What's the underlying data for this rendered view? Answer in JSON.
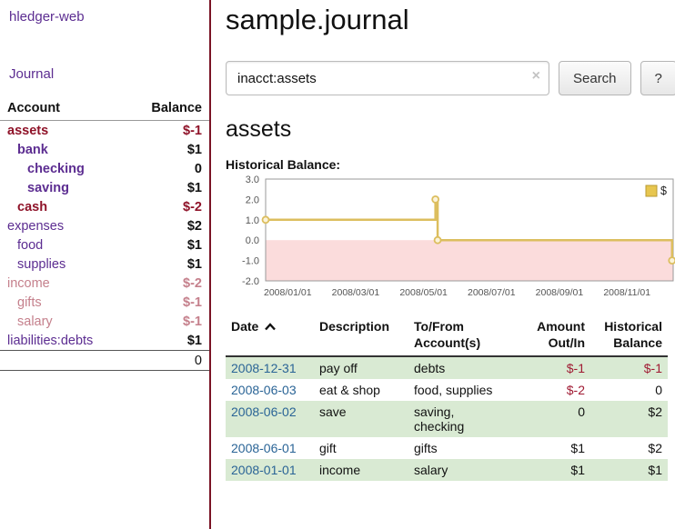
{
  "sidebar": {
    "brand": "hledger-web",
    "journal_link": "Journal",
    "accounts_header": {
      "account": "Account",
      "balance": "Balance"
    },
    "accounts": [
      {
        "name": "assets",
        "indent": 0,
        "balance": "$-1",
        "name_tone": "maroon",
        "bal_tone": "maroon",
        "bold": true
      },
      {
        "name": "bank",
        "indent": 1,
        "balance": "$1",
        "name_tone": "purple",
        "bal_tone": "black",
        "bold": true
      },
      {
        "name": "checking",
        "indent": 2,
        "balance": "0",
        "name_tone": "purple",
        "bal_tone": "black",
        "bold": true
      },
      {
        "name": "saving",
        "indent": 2,
        "balance": "$1",
        "name_tone": "purple",
        "bal_tone": "black",
        "bold": true
      },
      {
        "name": "cash",
        "indent": 1,
        "balance": "$-2",
        "name_tone": "maroon",
        "bal_tone": "maroon",
        "bold": true
      },
      {
        "name": "expenses",
        "indent": 0,
        "balance": "$2",
        "name_tone": "purple",
        "bal_tone": "black",
        "bold": false
      },
      {
        "name": "food",
        "indent": 1,
        "balance": "$1",
        "name_tone": "purple",
        "bal_tone": "black",
        "bold": false
      },
      {
        "name": "supplies",
        "indent": 1,
        "balance": "$1",
        "name_tone": "purple",
        "bal_tone": "black",
        "bold": false
      },
      {
        "name": "income",
        "indent": 0,
        "balance": "$-2",
        "name_tone": "pink",
        "bal_tone": "pink",
        "bold": false
      },
      {
        "name": "gifts",
        "indent": 1,
        "balance": "$-1",
        "name_tone": "pink",
        "bal_tone": "pink",
        "bold": false
      },
      {
        "name": "salary",
        "indent": 1,
        "balance": "$-1",
        "name_tone": "pink",
        "bal_tone": "pink",
        "bold": false
      },
      {
        "name": "liabilities:debts",
        "indent": 0,
        "balance": "$1",
        "name_tone": "purple",
        "bal_tone": "black",
        "bold": false
      }
    ],
    "total": "0"
  },
  "main": {
    "title": "sample.journal",
    "search": {
      "value": "inacct:assets",
      "clear_icon": "×",
      "button": "Search",
      "help": "?"
    },
    "account_heading": "assets",
    "chart_label": "Historical Balance:"
  },
  "chart_data": {
    "type": "line",
    "step": true,
    "title": "Historical Balance",
    "legend": "$",
    "ylim": [
      -2.0,
      3.0
    ],
    "yticks": [
      3.0,
      2.0,
      1.0,
      0.0,
      -1.0,
      -2.0
    ],
    "xticks": [
      "2008/01/01",
      "2008/03/01",
      "2008/05/01",
      "2008/07/01",
      "2008/09/01",
      "2008/11/01"
    ],
    "series": [
      {
        "name": "$",
        "points": [
          [
            "2008-01-01",
            1
          ],
          [
            "2008-06-01",
            2
          ],
          [
            "2008-06-03",
            0
          ],
          [
            "2008-12-31",
            -1
          ]
        ]
      }
    ],
    "line_color": "#dcbe5e",
    "marker_fill": "#fbf3d9",
    "legend_fill": "#e7c64f",
    "legend_border": "#b99b33",
    "negative_region_color": "#fbdcdc"
  },
  "register": {
    "headers": [
      {
        "key": "date",
        "lines": [
          "Date"
        ],
        "sort": true,
        "align": "left"
      },
      {
        "key": "description",
        "lines": [
          "Description"
        ],
        "sort": false,
        "align": "left"
      },
      {
        "key": "accounts",
        "lines": [
          "To/From",
          "Account(s)"
        ],
        "sort": false,
        "align": "left"
      },
      {
        "key": "amount",
        "lines": [
          "Amount",
          "Out/In"
        ],
        "sort": false,
        "align": "right"
      },
      {
        "key": "balance",
        "lines": [
          "Historical",
          "Balance"
        ],
        "sort": false,
        "align": "right"
      }
    ],
    "rows": [
      {
        "date": "2008-12-31",
        "description": "pay off",
        "accounts": "debts",
        "amount": "$-1",
        "amount_neg": true,
        "balance": "$-1",
        "balance_neg": true
      },
      {
        "date": "2008-06-03",
        "description": "eat & shop",
        "accounts": "food, supplies",
        "amount": "$-2",
        "amount_neg": true,
        "balance": "0",
        "balance_neg": false
      },
      {
        "date": "2008-06-02",
        "description": "save",
        "accounts": "saving,\nchecking",
        "amount": "0",
        "amount_neg": false,
        "balance": "$2",
        "balance_neg": false
      },
      {
        "date": "2008-06-01",
        "description": "gift",
        "accounts": "gifts",
        "amount": "$1",
        "amount_neg": false,
        "balance": "$2",
        "balance_neg": false
      },
      {
        "date": "2008-01-01",
        "description": "income",
        "accounts": "salary",
        "amount": "$1",
        "amount_neg": false,
        "balance": "$1",
        "balance_neg": false
      }
    ]
  }
}
